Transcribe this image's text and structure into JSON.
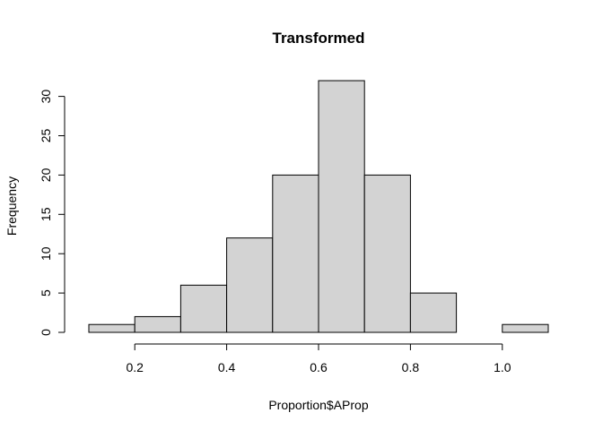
{
  "chart_data": {
    "type": "bar",
    "title": "Transformed",
    "xlabel": "Proportion$AProp",
    "ylabel": "Frequency",
    "bins": [
      {
        "x0": 0.1,
        "x1": 0.2,
        "count": 1
      },
      {
        "x0": 0.2,
        "x1": 0.3,
        "count": 2
      },
      {
        "x0": 0.3,
        "x1": 0.4,
        "count": 6
      },
      {
        "x0": 0.4,
        "x1": 0.5,
        "count": 12
      },
      {
        "x0": 0.5,
        "x1": 0.6,
        "count": 20
      },
      {
        "x0": 0.6,
        "x1": 0.7,
        "count": 32
      },
      {
        "x0": 0.7,
        "x1": 0.8,
        "count": 20
      },
      {
        "x0": 0.8,
        "x1": 0.9,
        "count": 5
      },
      {
        "x0": 0.9,
        "x1": 1.0,
        "count": 0
      },
      {
        "x0": 1.0,
        "x1": 1.1,
        "count": 1
      }
    ],
    "xlim": [
      0.1,
      1.1
    ],
    "ylim": [
      0,
      32
    ],
    "x_ticks": [
      "0.2",
      "0.4",
      "0.6",
      "0.8",
      "1.0"
    ],
    "y_ticks": [
      "0",
      "5",
      "10",
      "15",
      "20",
      "25",
      "30"
    ],
    "bar_color": "#d3d3d3",
    "grid": false,
    "legend": "none"
  }
}
